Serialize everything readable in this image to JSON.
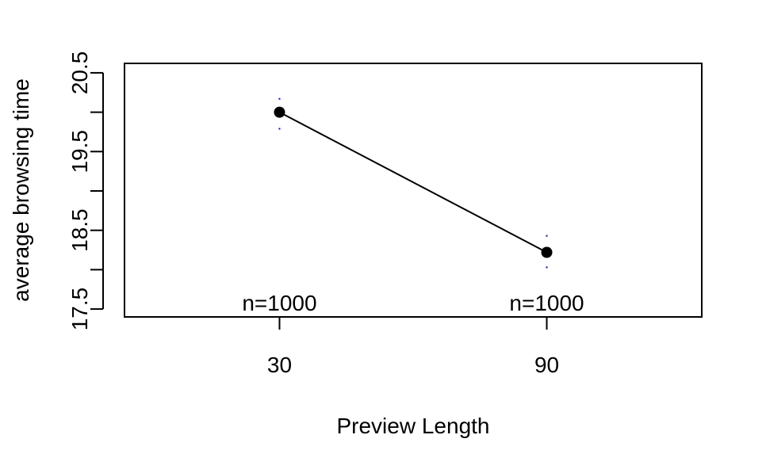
{
  "chart_data": {
    "type": "line",
    "title": "",
    "xlabel": "Preview Length",
    "ylabel": "average  browsing time",
    "x": [
      "30",
      "90"
    ],
    "values": [
      20.0,
      18.22
    ],
    "error_bars": [
      {
        "x": "30",
        "upper": 20.17,
        "lower": 19.79
      },
      {
        "x": "90",
        "upper": 18.43,
        "lower": 18.03
      }
    ],
    "n_labels": [
      "n=1000",
      "n=1000"
    ],
    "ylim": [
      17.4,
      20.62
    ],
    "y_ticks": [
      17.5,
      18,
      18.5,
      19,
      19.5,
      20,
      20.5
    ],
    "y_tick_labels": [
      "17.5",
      "",
      "18.5",
      "",
      "19.5",
      "",
      "20.5"
    ],
    "x_tick_labels": [
      "30",
      "90"
    ],
    "colors": {
      "line": "#000000",
      "point": "#000000",
      "error_bar": "#0000ff"
    },
    "grid": false,
    "legend": "none"
  }
}
